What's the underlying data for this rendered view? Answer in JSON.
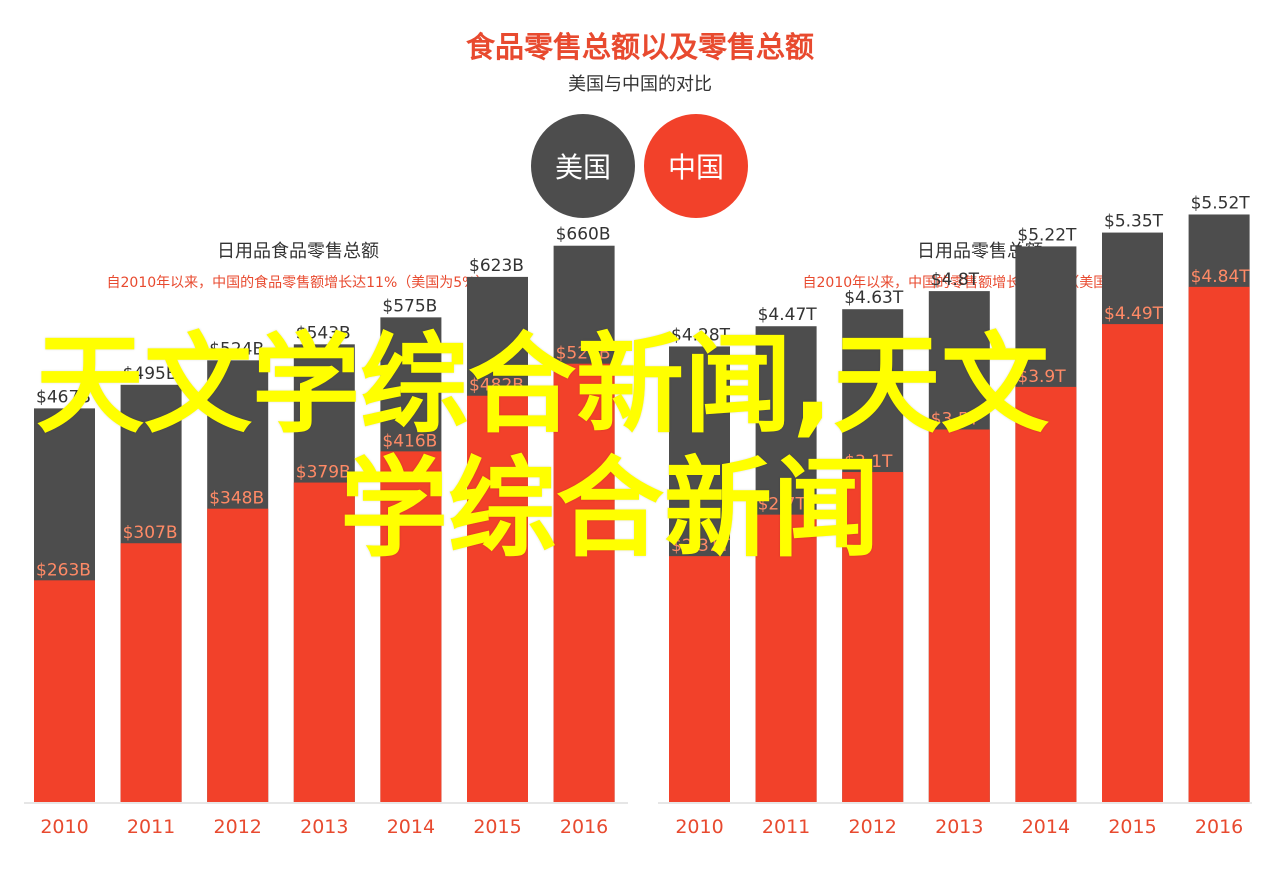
{
  "header": {
    "title": "食品零售总额以及零售总额",
    "subtitle": "美国与中国的对比"
  },
  "legend": {
    "us_label": "美国",
    "cn_label": "中国",
    "us_color": "#4d4d4d",
    "cn_color": "#f2412a"
  },
  "watermark": {
    "line1": "天文学综合新闻,天文",
    "line2": "学综合新闻"
  },
  "chart_data": [
    {
      "type": "bar",
      "title": "日用品食品零售总额",
      "subtitle": "自2010年以来，中国的食品零售额增长达11%（美国为5%）",
      "categories": [
        "2010",
        "2011",
        "2012",
        "2013",
        "2014",
        "2015",
        "2016"
      ],
      "series": [
        {
          "name": "美国",
          "values": [
            467,
            495,
            524,
            543,
            575,
            623,
            660
          ]
        },
        {
          "name": "中国",
          "values": [
            263,
            307,
            348,
            379,
            416,
            482,
            520
          ]
        }
      ],
      "total_labels": [
        "$467B",
        "$495B",
        "$524B",
        "$543B",
        "$575B",
        "$623B",
        "$660B"
      ],
      "cn_labels": [
        "$263B",
        "$307B",
        "$348B",
        "$379B",
        "$416B",
        "$482B",
        "$520B"
      ],
      "ylim": [
        0,
        700
      ]
    },
    {
      "type": "bar",
      "title": "日用品零售总额",
      "subtitle": "自2010年以来，中国的零售额增长达11%（美国为4%）",
      "categories": [
        "2010",
        "2011",
        "2012",
        "2013",
        "2014",
        "2015",
        "2016"
      ],
      "series": [
        {
          "name": "美国",
          "values": [
            4.28,
            4.47,
            4.63,
            4.8,
            5.22,
            5.35,
            5.52
          ]
        },
        {
          "name": "中国",
          "values": [
            2.31,
            2.7,
            3.1,
            3.5,
            3.9,
            4.49,
            4.84
          ]
        }
      ],
      "total_labels": [
        "$4.28T",
        "$4.47T",
        "$4.63T",
        "$4.8T",
        "$5.22T",
        "$5.35T",
        "$5.52T"
      ],
      "cn_labels": [
        "$2.31T",
        "$2.7T",
        "$3.1T",
        "$3.5T",
        "$3.9T",
        "$4.49T",
        "$4.84T"
      ],
      "ylim": [
        0,
        5.75
      ]
    }
  ]
}
